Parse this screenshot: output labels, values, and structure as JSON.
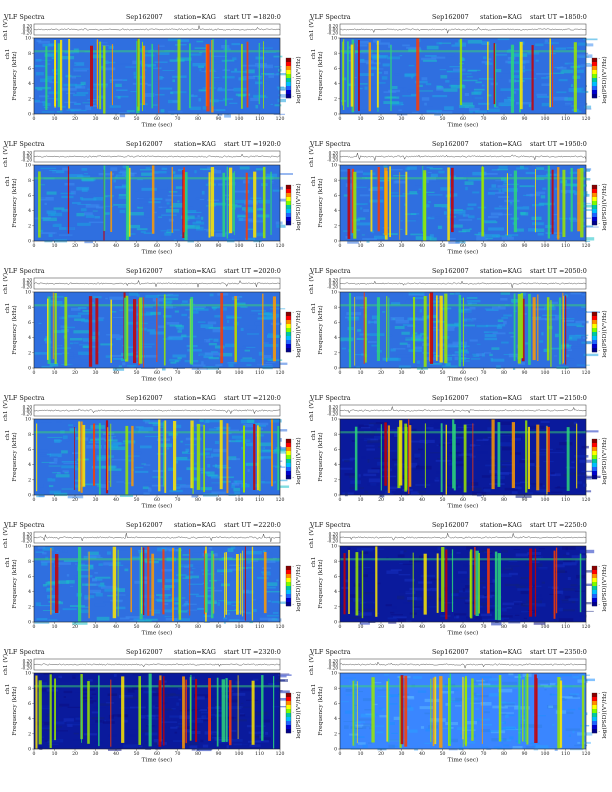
{
  "chart_data": [
    {
      "type": "heatmap",
      "header": {
        "instrument": "VLF Spectra",
        "date": "Sep162007",
        "station": "station=KAG",
        "start": "start UT =1820:0"
      },
      "ch1_label": "ch1 (V)",
      "ch1_ticks": [
        "0.20",
        "0.00",
        "-0.20"
      ],
      "ylabel": "Frequency (kHz)",
      "ylabel_side": "ch1",
      "xlabel": "Time (sec)",
      "xlim": [
        0,
        120
      ],
      "ylim": [
        0,
        10
      ],
      "x_ticks": [
        0,
        10,
        20,
        30,
        40,
        50,
        60,
        70,
        80,
        90,
        100,
        110,
        120
      ],
      "y_ticks": [
        0,
        2,
        4,
        6,
        8,
        10
      ],
      "colorbar_label": "log(PSD)(V²/Hz)",
      "colorbar_ticks": [
        "-",
        "-",
        "-"
      ],
      "background": "medium"
    },
    {
      "type": "heatmap",
      "header": {
        "instrument": "VLF Spectra",
        "date": "Sep162007",
        "station": "station=KAG",
        "start": "start UT =1850:0"
      },
      "ch1_label": "ch1 (V)",
      "ch1_ticks": [
        "0.20",
        "0.00",
        "-0.20"
      ],
      "ylabel": "Frequency (kHz)",
      "ylabel_side": "ch1",
      "xlabel": "Time (sec)",
      "xlim": [
        0,
        120
      ],
      "ylim": [
        0,
        10
      ],
      "x_ticks": [
        0,
        10,
        20,
        30,
        40,
        50,
        60,
        70,
        80,
        90,
        100,
        110,
        120
      ],
      "y_ticks": [
        0,
        2,
        4,
        6,
        8,
        10
      ],
      "colorbar_label": "log(PSD)(V²/Hz)",
      "colorbar_ticks": [
        "-",
        "-",
        "-"
      ],
      "background": "medium"
    },
    {
      "type": "heatmap",
      "header": {
        "instrument": "VLF Spectra",
        "date": "Sep162007",
        "station": "station=KAG",
        "start": "start UT =1920:0"
      },
      "ch1_label": "ch1 (V)",
      "ch1_ticks": [
        "0.20",
        "0.00",
        "-0.20"
      ],
      "ylabel": "Frequency (kHz)",
      "ylabel_side": "ch1",
      "xlabel": "Time (sec)",
      "xlim": [
        0,
        120
      ],
      "ylim": [
        0,
        10
      ],
      "x_ticks": [
        0,
        10,
        20,
        30,
        40,
        50,
        60,
        70,
        80,
        90,
        100,
        110,
        120
      ],
      "y_ticks": [
        0,
        2,
        4,
        6,
        8,
        10
      ],
      "colorbar_label": "log(PSD)(V²/Hz)",
      "colorbar_ticks": [
        "-",
        "-",
        "-"
      ],
      "background": "medium"
    },
    {
      "type": "heatmap",
      "header": {
        "instrument": "VLF Spectra",
        "date": "Sep162007",
        "station": "station=KAG",
        "start": "start UT =1950:0"
      },
      "ch1_label": "ch1 (V)",
      "ch1_ticks": [
        "0.20",
        "0.00",
        "-0.20"
      ],
      "ylabel": "Frequency (kHz)",
      "ylabel_side": "ch1",
      "xlabel": "Time (sec)",
      "xlim": [
        0,
        120
      ],
      "ylim": [
        0,
        10
      ],
      "x_ticks": [
        0,
        10,
        20,
        30,
        40,
        50,
        60,
        70,
        80,
        90,
        100,
        110,
        120
      ],
      "y_ticks": [
        0,
        2,
        4,
        6,
        8,
        10
      ],
      "colorbar_label": "log(PSD)(V²/Hz)",
      "colorbar_ticks": [
        "-",
        "-",
        "-"
      ],
      "background": "medium"
    },
    {
      "type": "heatmap",
      "header": {
        "instrument": "VLF Spectra",
        "date": "Sep162007",
        "station": "station=KAG",
        "start": "start UT =2020:0"
      },
      "ch1_label": "ch1 (V)",
      "ch1_ticks": [
        "0.20",
        "0.00",
        "-0.20"
      ],
      "ylabel": "Frequency (kHz)",
      "ylabel_side": "ch1",
      "xlabel": "Time (sec)",
      "xlim": [
        0,
        120
      ],
      "ylim": [
        0,
        10
      ],
      "x_ticks": [
        0,
        10,
        20,
        30,
        40,
        50,
        60,
        70,
        80,
        90,
        100,
        110,
        120
      ],
      "y_ticks": [
        0,
        2,
        4,
        6,
        8,
        10
      ],
      "colorbar_label": "log(PSD)(V²/Hz)",
      "colorbar_ticks": [
        "-",
        "-",
        "-"
      ],
      "background": "medium"
    },
    {
      "type": "heatmap",
      "header": {
        "instrument": "VLF Spectra",
        "date": "Sep162007",
        "station": "station=KAG",
        "start": "start UT =2050:0"
      },
      "ch1_label": "ch1 (V)",
      "ch1_ticks": [
        "0.20",
        "0.00",
        "-0.20"
      ],
      "ylabel": "Frequency (kHz)",
      "ylabel_side": "ch1",
      "xlabel": "Time (sec)",
      "xlim": [
        0,
        120
      ],
      "ylim": [
        0,
        10
      ],
      "x_ticks": [
        0,
        10,
        20,
        30,
        40,
        50,
        60,
        70,
        80,
        90,
        100,
        110,
        120
      ],
      "y_ticks": [
        0,
        2,
        4,
        6,
        8,
        10
      ],
      "colorbar_label": "log(PSD)(V²/Hz)",
      "colorbar_ticks": [
        "-",
        "-",
        "-"
      ],
      "background": "medium"
    },
    {
      "type": "heatmap",
      "header": {
        "instrument": "VLF Spectra",
        "date": "Sep162007",
        "station": "station=KAG",
        "start": "start UT =2120:0"
      },
      "ch1_label": "ch1 (V)",
      "ch1_ticks": [
        "0.20",
        "0.00",
        "-0.20"
      ],
      "ylabel": "Frequency (kHz)",
      "ylabel_side": "ch1",
      "xlabel": "Time (sec)",
      "xlim": [
        0,
        120
      ],
      "ylim": [
        0,
        10
      ],
      "x_ticks": [
        0,
        10,
        20,
        30,
        40,
        50,
        60,
        70,
        80,
        90,
        100,
        110,
        120
      ],
      "y_ticks": [
        0,
        2,
        4,
        6,
        8,
        10
      ],
      "colorbar_label": "log(PSD)(V²/Hz)",
      "colorbar_ticks": [
        "-",
        "-",
        "-"
      ],
      "background": "medium"
    },
    {
      "type": "heatmap",
      "header": {
        "instrument": "VLF Spectra",
        "date": "Sep162007",
        "station": "station=KAG",
        "start": "start UT =2150:0"
      },
      "ch1_label": "ch1 (V)",
      "ch1_ticks": [
        "0.20",
        "0.00",
        "-0.20"
      ],
      "ylabel": "Frequency (kHz)",
      "ylabel_side": "ch1",
      "xlabel": "Time (sec)",
      "xlim": [
        0,
        120
      ],
      "ylim": [
        0,
        10
      ],
      "x_ticks": [
        0,
        10,
        20,
        30,
        40,
        50,
        60,
        70,
        80,
        90,
        100,
        110,
        120
      ],
      "y_ticks": [
        0,
        2,
        4,
        6,
        8,
        10
      ],
      "colorbar_label": "log(PSD)(V²/Hz)",
      "colorbar_ticks": [
        "-",
        "-",
        "-"
      ],
      "background": "dark"
    },
    {
      "type": "heatmap",
      "header": {
        "instrument": "VLF Spectra",
        "date": "Sep162007",
        "station": "station=KAG",
        "start": "start UT =2220:0"
      },
      "ch1_label": "ch1 (V)",
      "ch1_ticks": [
        "0.20",
        "0.00",
        "-0.20"
      ],
      "ylabel": "Frequency (kHz)",
      "ylabel_side": "ch1",
      "xlabel": "Time (sec)",
      "xlim": [
        0,
        120
      ],
      "ylim": [
        0,
        10
      ],
      "x_ticks": [
        0,
        10,
        20,
        30,
        40,
        50,
        60,
        70,
        80,
        90,
        100,
        110,
        120
      ],
      "y_ticks": [
        0,
        2,
        4,
        6,
        8,
        10
      ],
      "colorbar_label": "log(PSD)(V²/Hz)",
      "colorbar_ticks": [
        "-",
        "-",
        "-"
      ],
      "background": "medium"
    },
    {
      "type": "heatmap",
      "header": {
        "instrument": "VLF Spectra",
        "date": "Sep162007",
        "station": "station=KAG",
        "start": "start UT =2250:0"
      },
      "ch1_label": "ch1 (V)",
      "ch1_ticks": [
        "0.20",
        "0.00",
        "-0.20"
      ],
      "ylabel": "Frequency (kHz)",
      "ylabel_side": "ch1",
      "xlabel": "Time (sec)",
      "xlim": [
        0,
        120
      ],
      "ylim": [
        0,
        10
      ],
      "x_ticks": [
        0,
        10,
        20,
        30,
        40,
        50,
        60,
        70,
        80,
        90,
        100,
        110,
        120
      ],
      "y_ticks": [
        0,
        2,
        4,
        6,
        8,
        10
      ],
      "colorbar_label": "log(PSD)(V²/Hz)",
      "colorbar_ticks": [
        "-",
        "-",
        "-"
      ],
      "background": "dark"
    },
    {
      "type": "heatmap",
      "header": {
        "instrument": "VLF Spectra",
        "date": "Sep162007",
        "station": "station=KAG",
        "start": "start UT =2320:0"
      },
      "ch1_label": "ch1 (V)",
      "ch1_ticks": [
        "0.20",
        "0.00",
        "-0.20"
      ],
      "ylabel": "Frequency (kHz)",
      "ylabel_side": "ch1",
      "xlabel": "Time (sec)",
      "xlim": [
        0,
        120
      ],
      "ylim": [
        0,
        10
      ],
      "x_ticks": [
        0,
        10,
        20,
        30,
        40,
        50,
        60,
        70,
        80,
        90,
        100,
        110,
        120
      ],
      "y_ticks": [
        0,
        2,
        4,
        6,
        8,
        10
      ],
      "colorbar_label": "log(PSD)(V²/Hz)",
      "colorbar_ticks": [
        "-",
        "-",
        "-"
      ],
      "background": "dark"
    },
    {
      "type": "heatmap",
      "header": {
        "instrument": "VLF Spectra",
        "date": "Sep162007",
        "station": "station=KAG",
        "start": "start UT =2350:0"
      },
      "ch1_label": "ch1 (V)",
      "ch1_ticks": [
        "0.20",
        "0.00",
        "-0.20"
      ],
      "ylabel": "Frequency (kHz)",
      "ylabel_side": "ch1",
      "xlabel": "Time (sec)",
      "xlim": [
        0,
        120
      ],
      "ylim": [
        0,
        10
      ],
      "x_ticks": [
        0,
        10,
        20,
        30,
        40,
        50,
        60,
        70,
        80,
        90,
        100,
        110,
        120
      ],
      "y_ticks": [
        0,
        2,
        4,
        6,
        8,
        10
      ],
      "colorbar_label": "log(PSD)(V²/Hz)",
      "colorbar_ticks": [
        "-",
        "-",
        "-"
      ],
      "background": "light"
    }
  ],
  "colorbar_colors": [
    "#8b0000",
    "#ff0000",
    "#ff8c00",
    "#ffff00",
    "#7cfc00",
    "#00c8a0",
    "#00bfff",
    "#1e64ff",
    "#0000cd",
    "#00008b"
  ]
}
